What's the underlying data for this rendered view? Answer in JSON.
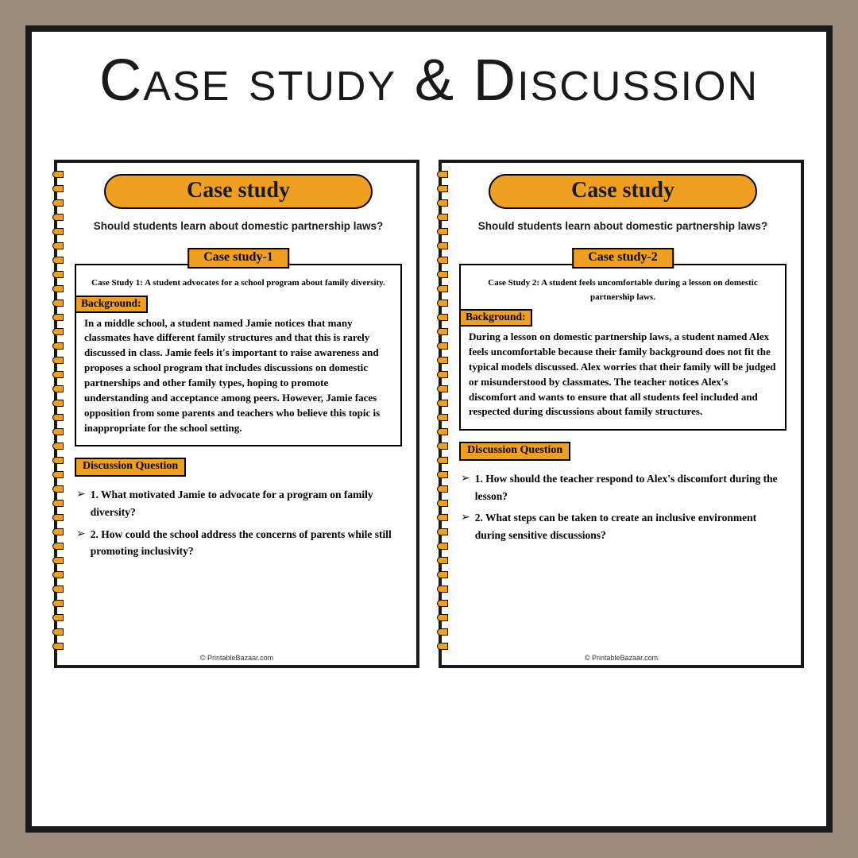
{
  "colors": {
    "outer_bg": "#9a8a7a",
    "frame_border": "#1a1a1a",
    "page_bg": "#ffffff",
    "accent": "#f0a020",
    "text": "#1a1a1a"
  },
  "main_title": "Case study & Discussion",
  "subtitle": "Should students learn about domestic partnership laws?",
  "footer": "© PrintableBazaar.com",
  "pill_label": "Case study",
  "background_label": "Background:",
  "discussion_label": "Discussion Question",
  "pages": [
    {
      "tab": "Case study-1",
      "intro": "Case Study 1: A student advocates for a school program about family diversity.",
      "background": "In a middle school, a student named Jamie notices that many classmates have different family structures and that this is rarely discussed in class. Jamie feels it's important to raise awareness and proposes a school program that includes discussions on domestic partnerships and other family types, hoping to promote understanding and acceptance among peers. However, Jamie faces opposition from some parents and teachers who believe this topic is inappropriate for the school setting.",
      "questions": [
        "1. What motivated Jamie to advocate for a program on family diversity?",
        "2. How could the school address the concerns of parents while still promoting inclusivity?"
      ]
    },
    {
      "tab": "Case study-2",
      "intro": "Case Study 2: A student feels uncomfortable during a lesson on domestic partnership laws.",
      "background": "During a lesson on domestic partnership laws, a student named Alex feels uncomfortable because their family background does not fit the typical models discussed. Alex worries that their family will be judged or misunderstood by classmates. The teacher notices Alex's discomfort and wants to ensure that all students feel included and respected during discussions about family structures.",
      "questions": [
        "1. How should the teacher respond to Alex's discomfort during the lesson?",
        "2. What steps can be taken to create an inclusive environment during sensitive discussions?"
      ]
    }
  ]
}
